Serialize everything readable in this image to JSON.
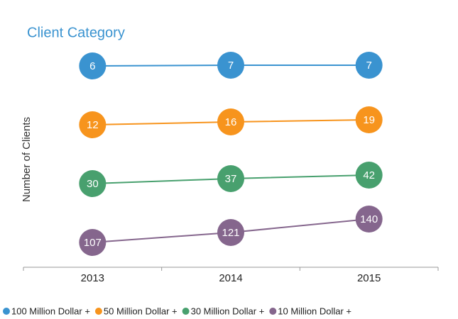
{
  "chart_data": {
    "type": "line",
    "title": "Client Category",
    "y_label": "Number of Clients",
    "categories": [
      "2013",
      "2014",
      "2015"
    ],
    "series": [
      {
        "name": "100 Million Dollar +",
        "color": "#3a93d0",
        "values": [
          6,
          7,
          7
        ]
      },
      {
        "name": "50 Million Dollar +",
        "color": "#f7941d",
        "values": [
          12,
          16,
          19
        ]
      },
      {
        "name": "30 Million Dollar +",
        "color": "#48a06e",
        "values": [
          30,
          37,
          42
        ]
      },
      {
        "name": "10 Million Dollar +",
        "color": "#85668d",
        "values": [
          107,
          121,
          140
        ]
      }
    ]
  }
}
